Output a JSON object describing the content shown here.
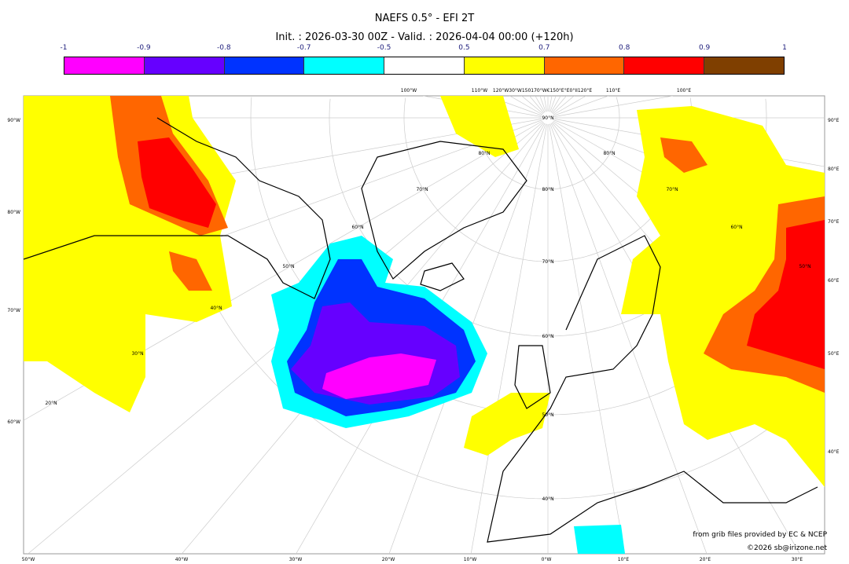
{
  "title": "NAEFS 0.5° - EFI 2T",
  "subtitle": "Init. : 2026-03-30 00Z - Valid. : 2026-04-04 00:00 (+120h)",
  "colorbar": {
    "ticks": [
      "-1",
      "-0.9",
      "-0.8",
      "-0.7",
      "-0.5",
      "0.5",
      "0.7",
      "0.8",
      "0.9",
      "1"
    ],
    "colors": [
      "#ff00ff",
      "#6600ff",
      "#0033ff",
      "#00ffff",
      "#ffffff",
      "#ffff00",
      "#ff6600",
      "#ff0000",
      "#7f3f00"
    ]
  },
  "map": {
    "left_labels": [
      "90°W",
      "80°W",
      "70°W",
      "60°W"
    ],
    "right_labels": [
      "90°E",
      "80°E",
      "70°E",
      "60°E",
      "50°E",
      "40°E"
    ],
    "bottom_labels": [
      "50°W",
      "40°W",
      "30°W",
      "20°W",
      "10°W",
      "0°W",
      "10°E",
      "20°E",
      "30°E"
    ],
    "top_labels": [
      "100°W",
      "110°W",
      "120°W30°W150170°W€150°E°E0°II120°E",
      "110°E",
      "100°E"
    ],
    "lat_labels_center": [
      "90°N",
      "80°N",
      "70°N",
      "60°N",
      "50°N",
      "40°N"
    ],
    "lat_labels_left": [
      "80°N",
      "70°N",
      "60°N",
      "50°N",
      "40°N",
      "30°N",
      "20°N"
    ],
    "lat_labels_right": [
      "80°N",
      "70°N",
      "60°N",
      "50°N"
    ]
  },
  "credits": {
    "source": "from grib files provided by EC & NCEP",
    "copyright": "©2026 sb@irizone.net"
  }
}
